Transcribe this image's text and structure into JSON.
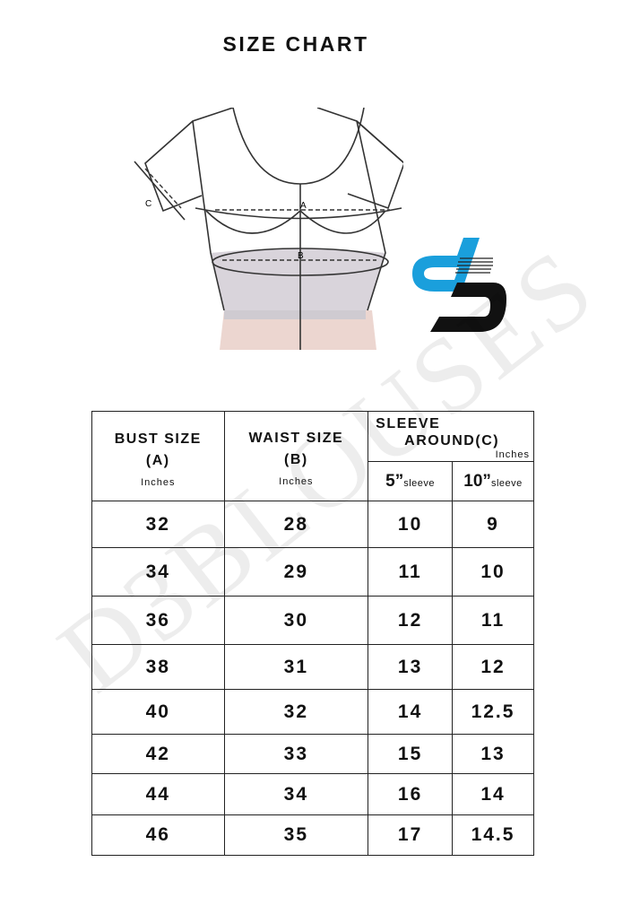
{
  "title": "SIZE CHART",
  "diagram": {
    "labels": {
      "a": "A",
      "b": "B",
      "c": "C"
    }
  },
  "logo": {
    "text": "D3"
  },
  "watermark": "D3BLOUSES",
  "table": {
    "bust": {
      "title": "BUST SIZE",
      "sub": "(A)",
      "unit": "Inches"
    },
    "waist": {
      "title": "WAIST SIZE",
      "sub": "(B)",
      "unit": "Inches"
    },
    "sleeve": {
      "title1": "SLEEVE",
      "title2": "AROUND",
      "sub": "(C)",
      "unit": "Inches",
      "col1": {
        "num": "5”",
        "label": "sleeve"
      },
      "col2": {
        "num": "10”",
        "label": "sleeve"
      }
    },
    "rows": [
      [
        "32",
        "28",
        "10",
        "9"
      ],
      [
        "34",
        "29",
        "11",
        "10"
      ],
      [
        "36",
        "30",
        "12",
        "11"
      ],
      [
        "38",
        "31",
        "13",
        "12"
      ],
      [
        "40",
        "32",
        "14",
        "12.5"
      ],
      [
        "42",
        "33",
        "15",
        "13"
      ],
      [
        "44",
        "34",
        "16",
        "14"
      ],
      [
        "46",
        "35",
        "17",
        "14.5"
      ]
    ]
  }
}
